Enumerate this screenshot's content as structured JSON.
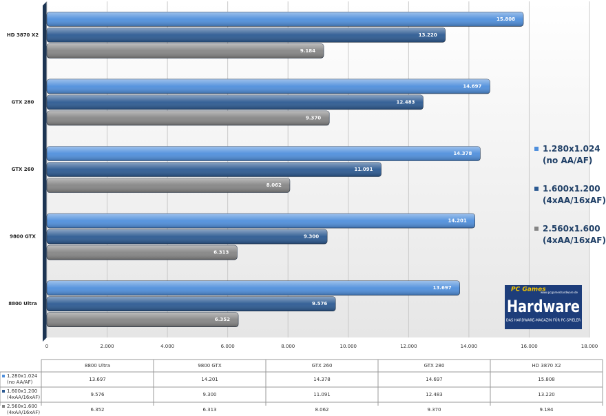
{
  "chart_data": {
    "type": "barh",
    "categories": [
      "8800 Ultra",
      "9800 GTX",
      "GTX 260",
      "GTX 280",
      "HD 3870 X2"
    ],
    "series": [
      {
        "name": "1.280x1.024\n(no AA/AF)",
        "color": "#4f8fdc",
        "values": [
          13697,
          14201,
          14378,
          14697,
          15808
        ],
        "value_labels": [
          "13.697",
          "14.201",
          "14.378",
          "14.697",
          "15.808"
        ]
      },
      {
        "name": "1.600x1.200\n(4xAA/16xAF)",
        "color": "#2c5a92",
        "values": [
          9576,
          9300,
          11091,
          12483,
          13220
        ],
        "value_labels": [
          "9.576",
          "9.300",
          "11.091",
          "12.483",
          "13.220"
        ]
      },
      {
        "name": "2.560x1.600\n(4xAA/16xAF)",
        "color": "#858585",
        "values": [
          6352,
          6313,
          8062,
          9370,
          9184
        ],
        "value_labels": [
          "6.352",
          "6.313",
          "8.062",
          "9.370",
          "9.184"
        ]
      }
    ],
    "xlim": [
      0,
      18000
    ],
    "xticks": [
      0,
      {
        "value": 2000,
        "label": "2.000"
      },
      {
        "value": 4000,
        "label": "4.000"
      },
      {
        "value": 6000,
        "label": "6.000"
      },
      {
        "value": 8000,
        "label": "8.000"
      },
      {
        "value": 10000,
        "label": "10.000"
      },
      {
        "value": 12000,
        "label": "12.000"
      },
      {
        "value": 14000,
        "label": "14.000"
      },
      {
        "value": 16000,
        "label": "16.000"
      },
      {
        "value": 18000,
        "label": "18.000"
      }
    ],
    "grid": true,
    "legend": "right"
  },
  "logo": {
    "top": "PC Games",
    "main": "Hardware",
    "url": "www.pcgameshardware.de",
    "tagline": "DAS HARDWARE-MAGAZIN FÜR PC-SPIELER"
  }
}
